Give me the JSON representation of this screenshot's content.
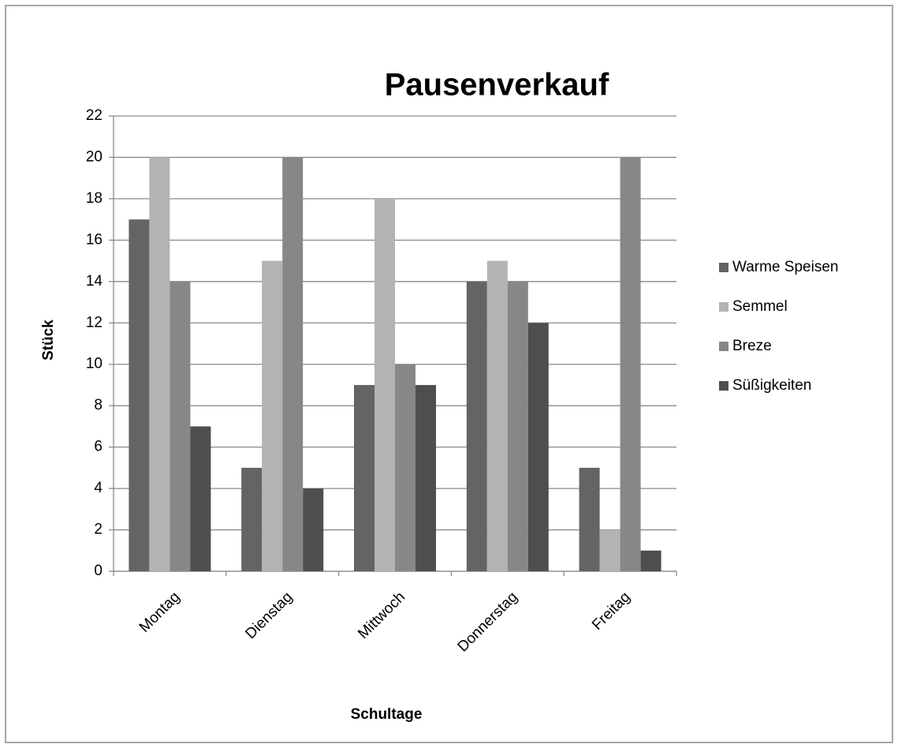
{
  "chart_data": {
    "type": "bar",
    "title": "Pausenverkauf",
    "x_label": "Schultage",
    "y_label": "Stück",
    "categories": [
      "Montag",
      "Dienstag",
      "Mittwoch",
      "Donnerstag",
      "Freitag"
    ],
    "series": [
      {
        "name": "Warme Speisen",
        "color": "#646464",
        "values": [
          17,
          5,
          9,
          14,
          5
        ]
      },
      {
        "name": "Semmel",
        "color": "#b3b3b3",
        "values": [
          20,
          15,
          18,
          15,
          2
        ]
      },
      {
        "name": "Breze",
        "color": "#878787",
        "values": [
          14,
          20,
          10,
          14,
          20
        ]
      },
      {
        "name": "Süßigkeiten",
        "color": "#4e4e4e",
        "values": [
          7,
          4,
          9,
          12,
          1
        ]
      }
    ],
    "ylim": [
      0,
      22
    ],
    "yticks": [
      0,
      2,
      4,
      6,
      8,
      10,
      12,
      14,
      16,
      18,
      20,
      22
    ],
    "grid": true,
    "legend": "right"
  }
}
